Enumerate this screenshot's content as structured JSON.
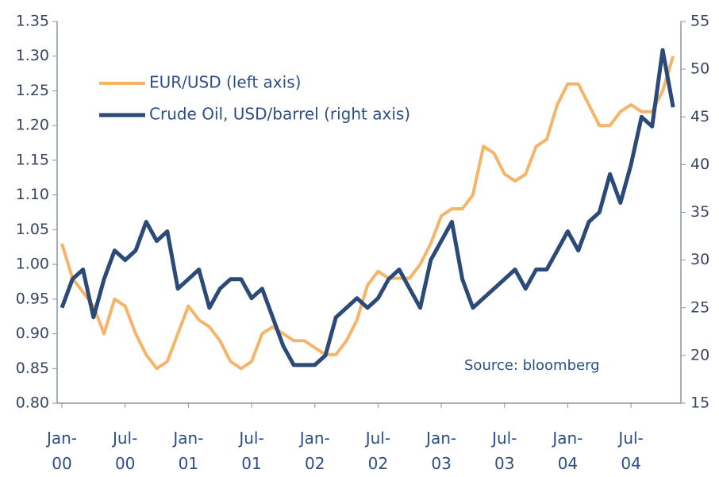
{
  "chart_data": {
    "type": "line",
    "categories": [
      "Jan-00",
      null,
      null,
      null,
      null,
      null,
      "Jul-00",
      null,
      null,
      null,
      null,
      null,
      "Jan-01",
      null,
      null,
      null,
      null,
      null,
      "Jul-01",
      null,
      null,
      null,
      null,
      null,
      "Jan-02",
      null,
      null,
      null,
      null,
      null,
      "Jul-02",
      null,
      null,
      null,
      null,
      null,
      "Jan-03",
      null,
      null,
      null,
      null,
      null,
      "Jul-03",
      null,
      null,
      null,
      null,
      null,
      "Jan-04",
      null,
      null,
      null,
      null,
      null,
      "Jul-04",
      null,
      null,
      null,
      null
    ],
    "series": [
      {
        "name": "EUR/USD (left axis)",
        "color": "#f6b469",
        "values": [
          1.03,
          0.98,
          0.96,
          0.94,
          0.9,
          0.95,
          0.94,
          0.9,
          0.87,
          0.85,
          0.86,
          0.9,
          0.94,
          0.92,
          0.91,
          0.89,
          0.86,
          0.85,
          0.86,
          0.9,
          0.91,
          0.9,
          0.89,
          0.89,
          0.88,
          0.87,
          0.87,
          0.89,
          0.92,
          0.97,
          0.99,
          0.98,
          0.98,
          0.98,
          1.0,
          1.03,
          1.07,
          1.08,
          1.08,
          1.1,
          1.17,
          1.16,
          1.13,
          1.12,
          1.13,
          1.17,
          1.18,
          1.23,
          1.26,
          1.26,
          1.23,
          1.2,
          1.2,
          1.22,
          1.23,
          1.22,
          1.22,
          1.25,
          1.3
        ]
      },
      {
        "name": "Crude Oil, USD/barrel (right axis)",
        "color": "#2b4a78",
        "axis": "y2",
        "values": [
          25,
          28,
          29,
          24,
          28,
          31,
          30,
          31,
          34,
          32,
          33,
          27,
          28,
          29,
          25,
          27,
          28,
          28,
          26,
          27,
          24,
          21,
          19,
          19,
          19,
          20,
          24,
          25,
          26,
          25,
          26,
          28,
          29,
          27,
          25,
          30,
          32,
          34,
          28,
          25,
          26,
          27,
          28,
          29,
          27,
          29,
          29,
          31,
          33,
          31,
          34,
          35,
          39,
          36,
          40,
          45,
          44,
          52,
          46
        ]
      }
    ],
    "ylim": [
      0.8,
      1.35
    ],
    "yticks": [
      {
        "value": 0.8,
        "label": "0.80"
      },
      {
        "value": 0.85,
        "label": "0.85"
      },
      {
        "value": 0.9,
        "label": "0.90"
      },
      {
        "value": 0.95,
        "label": "0.95"
      },
      {
        "value": 1.0,
        "label": "1.00"
      },
      {
        "value": 1.05,
        "label": "1.05"
      },
      {
        "value": 1.1,
        "label": "1.10"
      },
      {
        "value": 1.15,
        "label": "1.15"
      },
      {
        "value": 1.2,
        "label": "1.20"
      },
      {
        "value": 1.25,
        "label": "1.25"
      },
      {
        "value": 1.3,
        "label": "1.30"
      },
      1.35
    ],
    "y2lim": [
      15,
      55
    ],
    "y2ticks": [
      15,
      20,
      25,
      30,
      35,
      40,
      45,
      50,
      55
    ],
    "annotation": "Source: bloomberg",
    "grid": false
  }
}
